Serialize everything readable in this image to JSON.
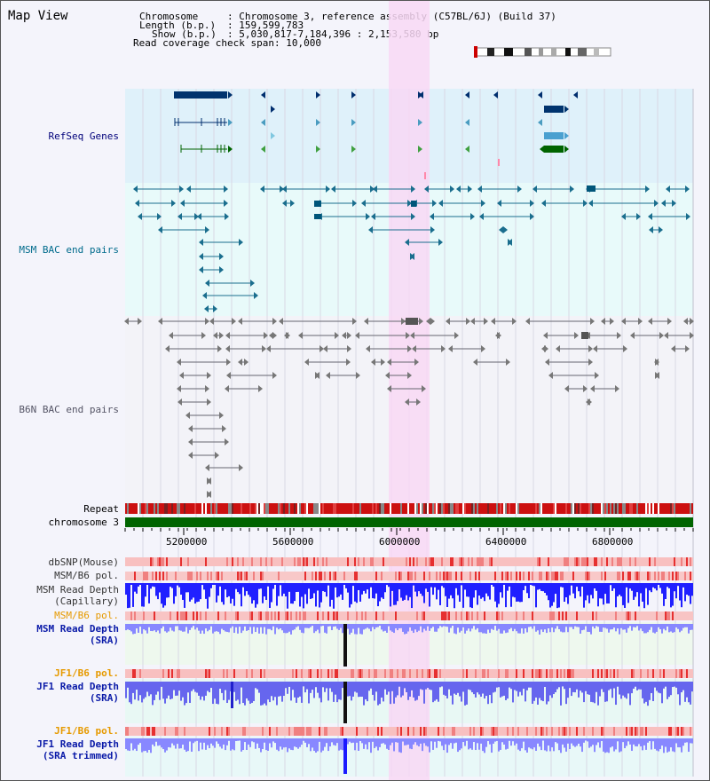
{
  "title": "Map View",
  "info": {
    "chromosome_key": "Chromosome",
    "chromosome_val": ": Chromosome 3, reference assembly (C57BL/6J) (Build 37)",
    "length_key": "Length (b.p.)",
    "length_val": ": 159,599,783",
    "show_key": "Show (b.p.)",
    "show_val": ": 5,030,817-7,184,396 : 2,153,580 bp",
    "coverage_key": "Read coverage check span",
    "coverage_val": ": 10,000"
  },
  "tracks": {
    "refseq": "RefSeq Genes",
    "msm_bac": "MSM BAC end pairs",
    "b6n_bac": "B6N BAC end pairs",
    "repeat": "Repeat",
    "chromosome": "chromosome 3",
    "dbsnp": "dbSNP(Mouse)",
    "msm_b6_pol_1": "MSM/B6 pol.",
    "msm_depth_cap_1": "MSM Read Depth",
    "msm_depth_cap_2": "(Capillary)",
    "msm_b6_pol_2": "MSM/B6 pol.",
    "msm_depth_sra_1": "MSM Read Depth",
    "msm_depth_sra_2": "(SRA)",
    "jf1_b6_pol_1": "JF1/B6 pol.",
    "jf1_depth_sra_1": "JF1 Read Depth",
    "jf1_depth_sra_2": "(SRA)",
    "jf1_b6_pol_2": "JF1/B6 pol.",
    "jf1_depth_trim_1": "JF1 Read Depth",
    "jf1_depth_trim_2": "(SRA trimmed)"
  },
  "axis": {
    "range": [
      5030817,
      7184396
    ],
    "ticks": [
      "5200000",
      "5600000",
      "6000000",
      "6400000",
      "6800000"
    ]
  },
  "colors": {
    "highlight": "#f8d8f4",
    "refseq_label": "#00007a",
    "msm_label": "#006b8c",
    "b6n_label": "#555566",
    "orange_label": "#e69a00",
    "blue_label": "#0a1aa8",
    "chrom_green": "#006400"
  }
}
